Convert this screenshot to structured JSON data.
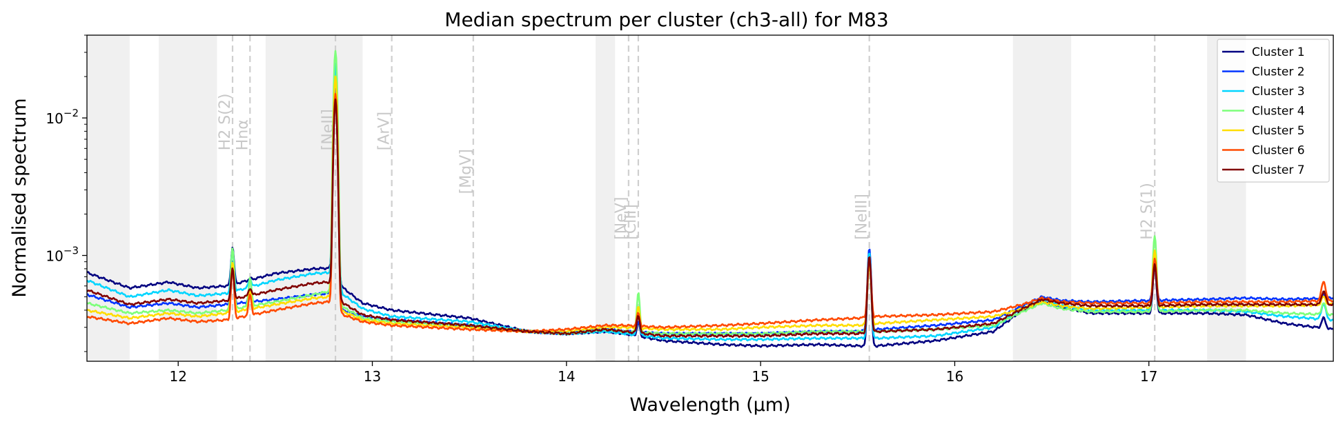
{
  "chart_data": {
    "type": "line",
    "title": "Median spectrum per cluster (ch3-all) for M83",
    "xlabel": "Wavelength (μm)",
    "ylabel": "Normalised spectrum",
    "yscale": "log",
    "xlim": [
      11.53,
      17.95
    ],
    "ylim": [
      0.00017,
      0.04
    ],
    "xticks": [
      12,
      13,
      14,
      15,
      16,
      17
    ],
    "yticks": [
      {
        "value": 0.001,
        "base": "10",
        "exp": "−3"
      },
      {
        "value": 0.01,
        "base": "10",
        "exp": "−2"
      }
    ],
    "legend_position": "top-right",
    "shaded_regions": [
      [
        11.53,
        11.75
      ],
      [
        11.9,
        12.2
      ],
      [
        12.45,
        12.95
      ],
      [
        14.15,
        14.25
      ],
      [
        16.3,
        16.6
      ],
      [
        17.3,
        17.5
      ]
    ],
    "line_markers": [
      {
        "x": 12.28,
        "label": "H2 S(2)",
        "label_y": 0.0058
      },
      {
        "x": 12.37,
        "label": "Hnα",
        "label_y": 0.0058
      },
      {
        "x": 12.81,
        "label": "[NeII]",
        "label_y": 0.0058
      },
      {
        "x": 13.1,
        "label": "[ArV]",
        "label_y": 0.0058
      },
      {
        "x": 13.52,
        "label": "[MgV]",
        "label_y": 0.0028
      },
      {
        "x": 14.32,
        "label": "[NeV]",
        "label_y": 0.0013
      },
      {
        "x": 14.37,
        "label": "[ClII]",
        "label_y": 0.0013
      },
      {
        "x": 15.56,
        "label": "[NeIII]",
        "label_y": 0.0013
      },
      {
        "x": 17.03,
        "label": "H2 S(1)",
        "label_y": 0.0013
      }
    ],
    "emission_lines": [
      {
        "center": 12.28,
        "width": 0.007,
        "heights": [
          0.00115,
          0.0009,
          0.0011,
          0.00115,
          0.0009,
          0.0008,
          0.0008
        ]
      },
      {
        "center": 12.37,
        "width": 0.007,
        "heights": [
          0.00068,
          0.00056,
          0.00068,
          0.00069,
          0.00055,
          0.00052,
          0.00058
        ]
      },
      {
        "center": 12.81,
        "width": 0.008,
        "heights": [
          0.0145,
          0.016,
          0.025,
          0.031,
          0.02,
          0.015,
          0.0138
        ]
      },
      {
        "center": 14.37,
        "width": 0.007,
        "heights": [
          0.00033,
          0.00033,
          0.00038,
          0.00054,
          0.00042,
          0.00038,
          0.00037
        ]
      },
      {
        "center": 15.56,
        "width": 0.008,
        "heights": [
          0.001,
          0.00112,
          0.00105,
          0.0009,
          0.00088,
          0.00095,
          0.00098
        ]
      },
      {
        "center": 17.03,
        "width": 0.008,
        "heights": [
          0.00085,
          0.00092,
          0.001,
          0.00138,
          0.0011,
          0.00095,
          0.00085
        ]
      },
      {
        "center": 17.9,
        "width": 0.01,
        "heights": [
          0.00035,
          0.00052,
          0.00045,
          0.00045,
          0.0005,
          0.00065,
          0.00055
        ]
      }
    ],
    "series": [
      {
        "name": "Cluster 1",
        "color": "#000080",
        "x": [
          11.53,
          11.75,
          11.95,
          12.1,
          12.25,
          12.5,
          12.7,
          12.78,
          12.85,
          12.95,
          13.1,
          13.5,
          13.8,
          14.0,
          14.2,
          14.3,
          14.5,
          14.8,
          15.0,
          15.3,
          15.5,
          15.6,
          15.9,
          16.2,
          16.35,
          16.45,
          16.55,
          16.7,
          17.0,
          17.3,
          17.5,
          17.7,
          17.95
        ],
        "values": [
          0.00075,
          0.00058,
          0.00064,
          0.00058,
          0.0006,
          0.00074,
          0.0008,
          0.00081,
          0.00058,
          0.00045,
          0.0004,
          0.00035,
          0.00028,
          0.00027,
          0.00028,
          0.00027,
          0.00024,
          0.000225,
          0.00022,
          0.000225,
          0.00022,
          0.00022,
          0.00024,
          0.00028,
          0.0004,
          0.00047,
          0.00042,
          0.00038,
          0.00038,
          0.00038,
          0.00037,
          0.00032,
          0.00029
        ]
      },
      {
        "name": "Cluster 2",
        "color": "#0033ff",
        "x": [
          11.53,
          11.75,
          11.95,
          12.1,
          12.25,
          12.5,
          12.7,
          12.78,
          12.85,
          12.95,
          13.1,
          13.5,
          13.8,
          14.0,
          14.2,
          14.3,
          14.5,
          14.8,
          15.0,
          15.3,
          15.5,
          15.6,
          15.9,
          16.2,
          16.35,
          16.45,
          16.55,
          16.7,
          17.0,
          17.3,
          17.5,
          17.7,
          17.95
        ],
        "values": [
          0.00052,
          0.00042,
          0.00045,
          0.00042,
          0.00044,
          0.00048,
          0.00052,
          0.00053,
          0.0004,
          0.00036,
          0.00034,
          0.00031,
          0.00028,
          0.00027,
          0.00029,
          0.00028,
          0.00027,
          0.00027,
          0.00027,
          0.00028,
          0.00028,
          0.00029,
          0.00031,
          0.00034,
          0.00043,
          0.0005,
          0.00047,
          0.00046,
          0.00047,
          0.00048,
          0.00049,
          0.00048,
          0.00049
        ]
      },
      {
        "name": "Cluster 3",
        "color": "#00d5ff",
        "x": [
          11.53,
          11.75,
          11.95,
          12.1,
          12.25,
          12.5,
          12.7,
          12.78,
          12.85,
          12.95,
          13.1,
          13.5,
          13.8,
          14.0,
          14.2,
          14.3,
          14.5,
          14.8,
          15.0,
          15.3,
          15.5,
          15.6,
          15.9,
          16.2,
          16.35,
          16.45,
          16.55,
          16.7,
          17.0,
          17.3,
          17.5,
          17.7,
          17.95
        ],
        "values": [
          0.00066,
          0.0005,
          0.00056,
          0.00051,
          0.00053,
          0.00066,
          0.00074,
          0.00075,
          0.00052,
          0.00041,
          0.00036,
          0.00033,
          0.00028,
          0.00027,
          0.00028,
          0.00027,
          0.00025,
          0.000245,
          0.000245,
          0.00025,
          0.00025,
          0.00025,
          0.00026,
          0.0003,
          0.00041,
          0.00048,
          0.00043,
          0.0004,
          0.0004,
          0.0004,
          0.00039,
          0.00036,
          0.00034
        ]
      },
      {
        "name": "Cluster 4",
        "color": "#7dff7a",
        "x": [
          11.53,
          11.75,
          11.95,
          12.1,
          12.25,
          12.5,
          12.7,
          12.78,
          12.85,
          12.95,
          13.1,
          13.5,
          13.8,
          14.0,
          14.2,
          14.3,
          14.5,
          14.8,
          15.0,
          15.3,
          15.5,
          15.6,
          15.9,
          16.2,
          16.35,
          16.45,
          16.55,
          16.7,
          17.0,
          17.3,
          17.5,
          17.7,
          17.95
        ],
        "values": [
          0.00045,
          0.00038,
          0.0004,
          0.00038,
          0.0004,
          0.00046,
          0.00052,
          0.00055,
          0.00042,
          0.00035,
          0.00033,
          0.00031,
          0.00028,
          0.00027,
          0.00029,
          0.00028,
          0.00027,
          0.00027,
          0.00027,
          0.00028,
          0.00028,
          0.00028,
          0.00029,
          0.00031,
          0.00039,
          0.00045,
          0.00041,
          0.00039,
          0.00039,
          0.0004,
          0.0004,
          0.00038,
          0.00037
        ]
      },
      {
        "name": "Cluster 5",
        "color": "#ffdd00",
        "x": [
          11.53,
          11.75,
          11.95,
          12.1,
          12.25,
          12.5,
          12.7,
          12.78,
          12.85,
          12.95,
          13.1,
          13.5,
          13.8,
          14.0,
          14.2,
          14.3,
          14.5,
          14.8,
          15.0,
          15.3,
          15.5,
          15.6,
          15.9,
          16.2,
          16.35,
          16.45,
          16.55,
          16.7,
          17.0,
          17.3,
          17.5,
          17.7,
          17.95
        ],
        "values": [
          0.0004,
          0.00035,
          0.00038,
          0.00036,
          0.00038,
          0.00044,
          0.00049,
          0.0005,
          0.00039,
          0.00034,
          0.00032,
          0.0003,
          0.00028,
          0.00028,
          0.0003,
          0.0003,
          0.00029,
          0.00029,
          0.0003,
          0.00031,
          0.00031,
          0.00032,
          0.00034,
          0.00036,
          0.00041,
          0.00046,
          0.00043,
          0.00041,
          0.00042,
          0.00043,
          0.00043,
          0.00043,
          0.00044
        ]
      },
      {
        "name": "Cluster 6",
        "color": "#ff4a00",
        "x": [
          11.53,
          11.75,
          11.95,
          12.1,
          12.25,
          12.5,
          12.7,
          12.78,
          12.85,
          12.95,
          13.1,
          13.5,
          13.8,
          14.0,
          14.2,
          14.3,
          14.5,
          14.8,
          15.0,
          15.3,
          15.5,
          15.6,
          15.9,
          16.2,
          16.35,
          16.45,
          16.55,
          16.7,
          17.0,
          17.3,
          17.5,
          17.7,
          17.95
        ],
        "values": [
          0.00036,
          0.00032,
          0.00035,
          0.00033,
          0.00034,
          0.0004,
          0.00045,
          0.00046,
          0.00037,
          0.00033,
          0.00031,
          0.00029,
          0.00028,
          0.00029,
          0.00031,
          0.00031,
          0.0003,
          0.00031,
          0.00032,
          0.00034,
          0.00035,
          0.00036,
          0.00037,
          0.00039,
          0.00044,
          0.00049,
          0.00046,
          0.00045,
          0.00045,
          0.00046,
          0.00046,
          0.00046,
          0.00047
        ]
      },
      {
        "name": "Cluster 7",
        "color": "#800000",
        "x": [
          11.53,
          11.75,
          11.95,
          12.1,
          12.25,
          12.5,
          12.7,
          12.78,
          12.85,
          12.95,
          13.1,
          13.5,
          13.8,
          14.0,
          14.2,
          14.3,
          14.5,
          14.8,
          15.0,
          15.3,
          15.5,
          15.6,
          15.9,
          16.2,
          16.35,
          16.45,
          16.55,
          16.7,
          17.0,
          17.3,
          17.5,
          17.7,
          17.95
        ],
        "values": [
          0.00056,
          0.00044,
          0.00048,
          0.00045,
          0.00047,
          0.00056,
          0.00063,
          0.00064,
          0.00045,
          0.00037,
          0.00034,
          0.00031,
          0.00028,
          0.00027,
          0.00029,
          0.00028,
          0.00026,
          0.00026,
          0.00026,
          0.00027,
          0.00027,
          0.00028,
          0.00029,
          0.00032,
          0.00041,
          0.00048,
          0.00045,
          0.00043,
          0.00043,
          0.00044,
          0.00044,
          0.00044,
          0.00044
        ]
      }
    ]
  }
}
